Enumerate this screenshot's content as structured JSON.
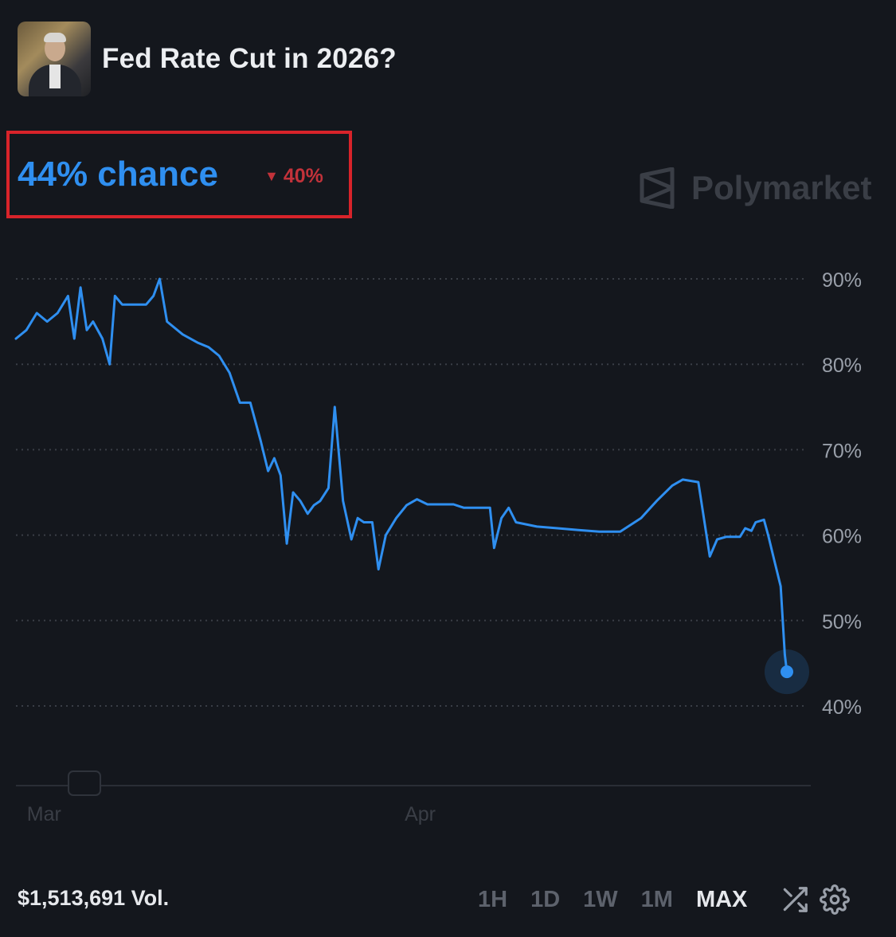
{
  "market": {
    "title": "Fed Rate Cut in 2026?",
    "chance_label": "44% chance",
    "change_label": "40%",
    "change_direction": "down"
  },
  "brand": {
    "name": "Polymarket"
  },
  "chart_data": {
    "type": "line",
    "series": [
      {
        "values": [
          [
            0,
            83
          ],
          [
            1,
            84
          ],
          [
            2,
            86
          ],
          [
            3,
            85
          ],
          [
            4,
            86
          ],
          [
            5,
            88
          ],
          [
            5.6,
            83
          ],
          [
            6.2,
            89
          ],
          [
            6.8,
            84
          ],
          [
            7.4,
            85
          ],
          [
            8.3,
            83
          ],
          [
            9.0,
            80
          ],
          [
            9.5,
            88
          ],
          [
            10.2,
            87
          ],
          [
            11.5,
            87
          ],
          [
            12.5,
            87
          ],
          [
            13.2,
            88
          ],
          [
            13.8,
            90
          ],
          [
            14.5,
            85
          ],
          [
            16,
            83.5
          ],
          [
            17.5,
            82.5
          ],
          [
            18.5,
            82
          ],
          [
            19.5,
            81
          ],
          [
            20.5,
            79
          ],
          [
            21.5,
            75.5
          ],
          [
            22.5,
            75.5
          ],
          [
            23.5,
            71
          ],
          [
            24.2,
            67.5
          ],
          [
            24.8,
            69
          ],
          [
            25.4,
            67
          ],
          [
            26.0,
            59
          ],
          [
            26.6,
            65
          ],
          [
            27.3,
            64
          ],
          [
            28.0,
            62.5
          ],
          [
            28.6,
            63.5
          ],
          [
            29.2,
            64
          ],
          [
            30.0,
            65.5
          ],
          [
            30.6,
            75
          ],
          [
            31.4,
            64
          ],
          [
            32.2,
            59.5
          ],
          [
            32.8,
            62
          ],
          [
            33.4,
            61.5
          ],
          [
            34.2,
            61.5
          ],
          [
            34.8,
            56
          ],
          [
            35.5,
            60
          ],
          [
            36.5,
            62
          ],
          [
            37.5,
            63.5
          ],
          [
            38.5,
            64.2
          ],
          [
            39.5,
            63.6
          ],
          [
            40.8,
            63.6
          ],
          [
            42,
            63.6
          ],
          [
            43,
            63.2
          ],
          [
            44,
            63.2
          ],
          [
            45.5,
            63.2
          ],
          [
            45.9,
            58.5
          ],
          [
            46.6,
            62
          ],
          [
            47.3,
            63.2
          ],
          [
            48,
            61.5
          ],
          [
            50,
            61.0
          ],
          [
            52,
            60.8
          ],
          [
            54,
            60.6
          ],
          [
            56,
            60.4
          ],
          [
            58,
            60.4
          ],
          [
            60,
            62.0
          ],
          [
            61.5,
            64.0
          ],
          [
            63,
            65.8
          ],
          [
            64,
            66.5
          ],
          [
            65.5,
            66.2
          ],
          [
            66.6,
            57.5
          ],
          [
            67.3,
            59.5
          ],
          [
            68.2,
            59.8
          ],
          [
            69.5,
            59.8
          ],
          [
            70,
            60.8
          ],
          [
            70.6,
            60.5
          ],
          [
            71,
            61.5
          ],
          [
            71.8,
            61.8
          ],
          [
            72.2,
            60
          ],
          [
            72.8,
            57
          ],
          [
            73.4,
            54
          ],
          [
            73.6,
            50
          ],
          [
            73.8,
            46
          ],
          [
            74,
            44
          ]
        ]
      }
    ],
    "y_ticks": [
      "90%",
      "80%",
      "70%",
      "60%",
      "50%",
      "40%"
    ],
    "y_tick_values": [
      90,
      80,
      70,
      60,
      50,
      40
    ],
    "ylim": [
      40,
      90
    ],
    "x_ticks": [
      {
        "label": "Mar",
        "x": 2.7
      },
      {
        "label": "Apr",
        "x": 38.8
      }
    ],
    "xlim": [
      0,
      74
    ],
    "grid": true,
    "line_color": "#2f8ff0",
    "end_value": 44
  },
  "footer": {
    "volume_label": "$1,513,691 Vol.",
    "ranges": [
      "1H",
      "1D",
      "1W",
      "1M",
      "MAX"
    ],
    "active_range": "MAX",
    "icons": [
      "shuffle-icon",
      "gear-icon"
    ]
  },
  "colors": {
    "background": "#14171d",
    "accent": "#2f8ff0",
    "negative": "#c2323a",
    "highlight_box": "#d8232a"
  }
}
